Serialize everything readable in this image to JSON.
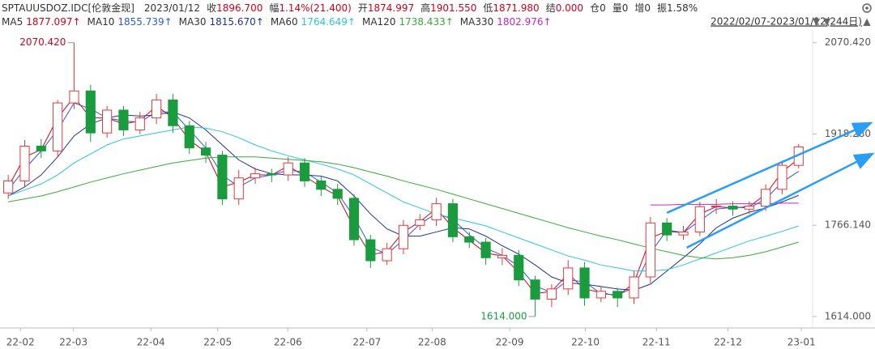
{
  "header": {
    "symbol": "SPTAUUSDOZ.IDC[伦敦金现]",
    "date": "2023/01/12",
    "quote": [
      {
        "label": "收",
        "value": "1896.700",
        "color": "#d0021b"
      },
      {
        "label": "幅",
        "value": "1.14%(21.400)",
        "color": "#d0021b"
      },
      {
        "label": "开",
        "value": "1874.997",
        "color": "#d0021b"
      },
      {
        "label": "高",
        "value": "1901.550",
        "color": "#d0021b"
      },
      {
        "label": "低",
        "value": "1871.980",
        "color": "#d0021b"
      },
      {
        "label": "结",
        "value": "0.000",
        "color": "#d0021b"
      },
      {
        "label": "仓",
        "value": "0",
        "color": "#333333"
      },
      {
        "label": "量",
        "value": "0",
        "color": "#333333"
      },
      {
        "label": "增",
        "value": "0",
        "color": "#333333"
      },
      {
        "label": "振",
        "value": "1.58%",
        "color": "#333333"
      }
    ],
    "range": "2022/02/07-2023/01/12(244日)"
  },
  "chart_data": {
    "type": "candlestick",
    "up_color": "#e4393c",
    "down_color": "#1a9c3e",
    "x": [
      0,
      1,
      2,
      3,
      4,
      5,
      6,
      7,
      8,
      9,
      10,
      11,
      12,
      13,
      14,
      15,
      16,
      17,
      18,
      19,
      20,
      21,
      22,
      23,
      24,
      25,
      26,
      27,
      28,
      29,
      30,
      31,
      32,
      33,
      34,
      35,
      36,
      37,
      38,
      39,
      40,
      41,
      42,
      43,
      44,
      45,
      46,
      47,
      48
    ],
    "open": [
      1820,
      1840,
      1898,
      1890,
      1970,
      1990,
      1920,
      1958,
      1925,
      1945,
      1975,
      1932,
      1895,
      1883,
      1810,
      1845,
      1852,
      1850,
      1870,
      1840,
      1826,
      1811,
      1742,
      1707,
      1727,
      1766,
      1775,
      1802,
      1747,
      1738,
      1712,
      1716,
      1675,
      1643,
      1660,
      1695,
      1645,
      1656,
      1645,
      1680,
      1770,
      1750,
      1755,
      1797,
      1798,
      1793,
      1798,
      1826,
      1866
    ],
    "high": [
      1850,
      1908,
      1910,
      1975,
      2070.42,
      2000,
      1965,
      1965,
      1955,
      1985,
      1985,
      1940,
      1905,
      1890,
      1858,
      1862,
      1860,
      1880,
      1878,
      1848,
      1835,
      1818,
      1750,
      1737,
      1775,
      1785,
      1812,
      1810,
      1755,
      1745,
      1728,
      1725,
      1682,
      1668,
      1708,
      1705,
      1665,
      1662,
      1690,
      1780,
      1778,
      1765,
      1805,
      1810,
      1806,
      1806,
      1834,
      1874,
      1901.55
    ],
    "low": [
      1810,
      1830,
      1878,
      1880,
      1960,
      1905,
      1912,
      1915,
      1918,
      1935,
      1920,
      1885,
      1870,
      1800,
      1800,
      1835,
      1838,
      1840,
      1830,
      1815,
      1800,
      1732,
      1695,
      1700,
      1718,
      1758,
      1765,
      1738,
      1728,
      1700,
      1700,
      1665,
      1614,
      1630,
      1650,
      1632,
      1638,
      1630,
      1635,
      1670,
      1740,
      1742,
      1748,
      1785,
      1782,
      1785,
      1790,
      1818,
      1861
    ],
    "close": [
      1840,
      1898,
      1890,
      1970,
      1990,
      1920,
      1958,
      1925,
      1945,
      1975,
      1932,
      1895,
      1883,
      1810,
      1845,
      1852,
      1850,
      1870,
      1840,
      1826,
      1811,
      1742,
      1707,
      1727,
      1766,
      1775,
      1802,
      1747,
      1738,
      1712,
      1716,
      1675,
      1643,
      1660,
      1695,
      1645,
      1656,
      1645,
      1680,
      1770,
      1750,
      1755,
      1797,
      1798,
      1793,
      1798,
      1826,
      1866,
      1896.7
    ],
    "series": [
      {
        "name": "MA5",
        "legend_value": "1877.097↑",
        "color": "#d0021b",
        "values": [
          1830,
          1880,
          1892,
          1945,
          1980,
          1945,
          1945,
          1935,
          1940,
          1965,
          1945,
          1908,
          1888,
          1830,
          1838,
          1850,
          1850,
          1865,
          1848,
          1830,
          1815,
          1762,
          1717,
          1722,
          1755,
          1772,
          1794,
          1762,
          1741,
          1720,
          1715,
          1688,
          1652,
          1656,
          1685,
          1660,
          1654,
          1648,
          1670,
          1745,
          1756,
          1754,
          1785,
          1797,
          1795,
          1797,
          1818,
          1855,
          1877
        ]
      },
      {
        "name": "MA10",
        "legend_value": "1855.739↑",
        "color": "#2f5bd3",
        "values": [
          1825,
          1860,
          1890,
          1925,
          1970,
          1960,
          1945,
          1940,
          1938,
          1955,
          1955,
          1925,
          1895,
          1850,
          1830,
          1845,
          1850,
          1858,
          1855,
          1838,
          1820,
          1780,
          1730,
          1718,
          1742,
          1768,
          1786,
          1776,
          1750,
          1728,
          1716,
          1698,
          1665,
          1654,
          1675,
          1672,
          1652,
          1650,
          1662,
          1720,
          1758,
          1754,
          1774,
          1793,
          1796,
          1795,
          1810,
          1838,
          1856
        ]
      },
      {
        "name": "MA30",
        "legend_value": "1815.670↑",
        "color": "#22318f",
        "values": [
          1815,
          1830,
          1850,
          1880,
          1915,
          1935,
          1945,
          1950,
          1948,
          1950,
          1955,
          1945,
          1925,
          1900,
          1875,
          1860,
          1852,
          1850,
          1850,
          1848,
          1840,
          1815,
          1785,
          1760,
          1748,
          1748,
          1755,
          1762,
          1760,
          1748,
          1732,
          1718,
          1700,
          1680,
          1670,
          1668,
          1664,
          1660,
          1658,
          1668,
          1690,
          1712,
          1735,
          1762,
          1778,
          1788,
          1795,
          1805,
          1816
        ]
      },
      {
        "name": "MA60",
        "legend_value": "1764.649↑",
        "color": "#2ec4d6",
        "values": [
          1815,
          1825,
          1835,
          1850,
          1870,
          1885,
          1900,
          1910,
          1915,
          1920,
          1925,
          1930,
          1928,
          1922,
          1912,
          1900,
          1890,
          1882,
          1875,
          1868,
          1860,
          1850,
          1835,
          1820,
          1805,
          1795,
          1785,
          1778,
          1772,
          1765,
          1755,
          1745,
          1735,
          1725,
          1715,
          1708,
          1700,
          1695,
          1690,
          1690,
          1692,
          1700,
          1710,
          1720,
          1730,
          1740,
          1748,
          1756,
          1765
        ]
      },
      {
        "name": "MA120",
        "legend_value": "1738.433↑",
        "color": "#3aa83a",
        "values": [
          1805,
          1810,
          1815,
          1822,
          1830,
          1838,
          1845,
          1852,
          1858,
          1864,
          1870,
          1874,
          1878,
          1880,
          1880,
          1880,
          1878,
          1876,
          1874,
          1872,
          1868,
          1862,
          1855,
          1848,
          1840,
          1833,
          1826,
          1818,
          1810,
          1802,
          1794,
          1786,
          1778,
          1770,
          1762,
          1755,
          1748,
          1742,
          1735,
          1728,
          1722,
          1716,
          1712,
          1710,
          1712,
          1716,
          1722,
          1730,
          1738
        ]
      },
      {
        "name": "MA330",
        "legend_value": "1802.976↑",
        "color": "#c026c9",
        "values": [
          null,
          null,
          null,
          null,
          null,
          null,
          null,
          null,
          null,
          null,
          null,
          null,
          null,
          null,
          null,
          null,
          null,
          null,
          null,
          null,
          null,
          null,
          null,
          null,
          null,
          null,
          null,
          null,
          null,
          null,
          null,
          null,
          null,
          null,
          null,
          null,
          null,
          null,
          null,
          1800,
          1800,
          1801,
          1801,
          1801,
          1802,
          1802,
          1802,
          1803,
          1803
        ]
      }
    ],
    "xlim": [
      -0.5,
      48.7
    ],
    "ylim": [
      1595,
      2097
    ],
    "xticks": [
      {
        "value": 0.74,
        "label": "22-02"
      },
      {
        "value": 3.96,
        "label": "22-03"
      },
      {
        "value": 8.66,
        "label": "22-04"
      },
      {
        "value": 12.72,
        "label": "22-05"
      },
      {
        "value": 16.98,
        "label": "22-06"
      },
      {
        "value": 21.78,
        "label": "22-07"
      },
      {
        "value": 25.74,
        "label": "22-08"
      },
      {
        "value": 30.45,
        "label": "22-09"
      },
      {
        "value": 35.05,
        "label": "22-10"
      },
      {
        "value": 39.36,
        "label": "22-11"
      },
      {
        "value": 43.71,
        "label": "22-12"
      },
      {
        "value": 48.17,
        "label": "23-01"
      }
    ],
    "yticks": [
      {
        "value": 2070.42,
        "label": "2070.420"
      },
      {
        "value": 1918.28,
        "label": "1918.280"
      },
      {
        "value": 1766.14,
        "label": "1766.140"
      },
      {
        "value": 1614,
        "label": "1614.000"
      }
    ],
    "annotations": [
      {
        "x": 4,
        "value": 2070.42,
        "label": "2070.420",
        "color": "#d0021b"
      },
      {
        "x": 32,
        "value": 1614,
        "label": "1614.000",
        "color": "#1a9c3e"
      }
    ],
    "trendlines": [
      {
        "color": "#2a9df4",
        "x": [
          40,
          52.4
        ],
        "y": [
          1786.9,
          1936.7
        ]
      },
      {
        "color": "#2a9df4",
        "x": [
          41.2,
          52.5
        ],
        "y": [
          1728.8,
          1885.4
        ]
      }
    ]
  }
}
